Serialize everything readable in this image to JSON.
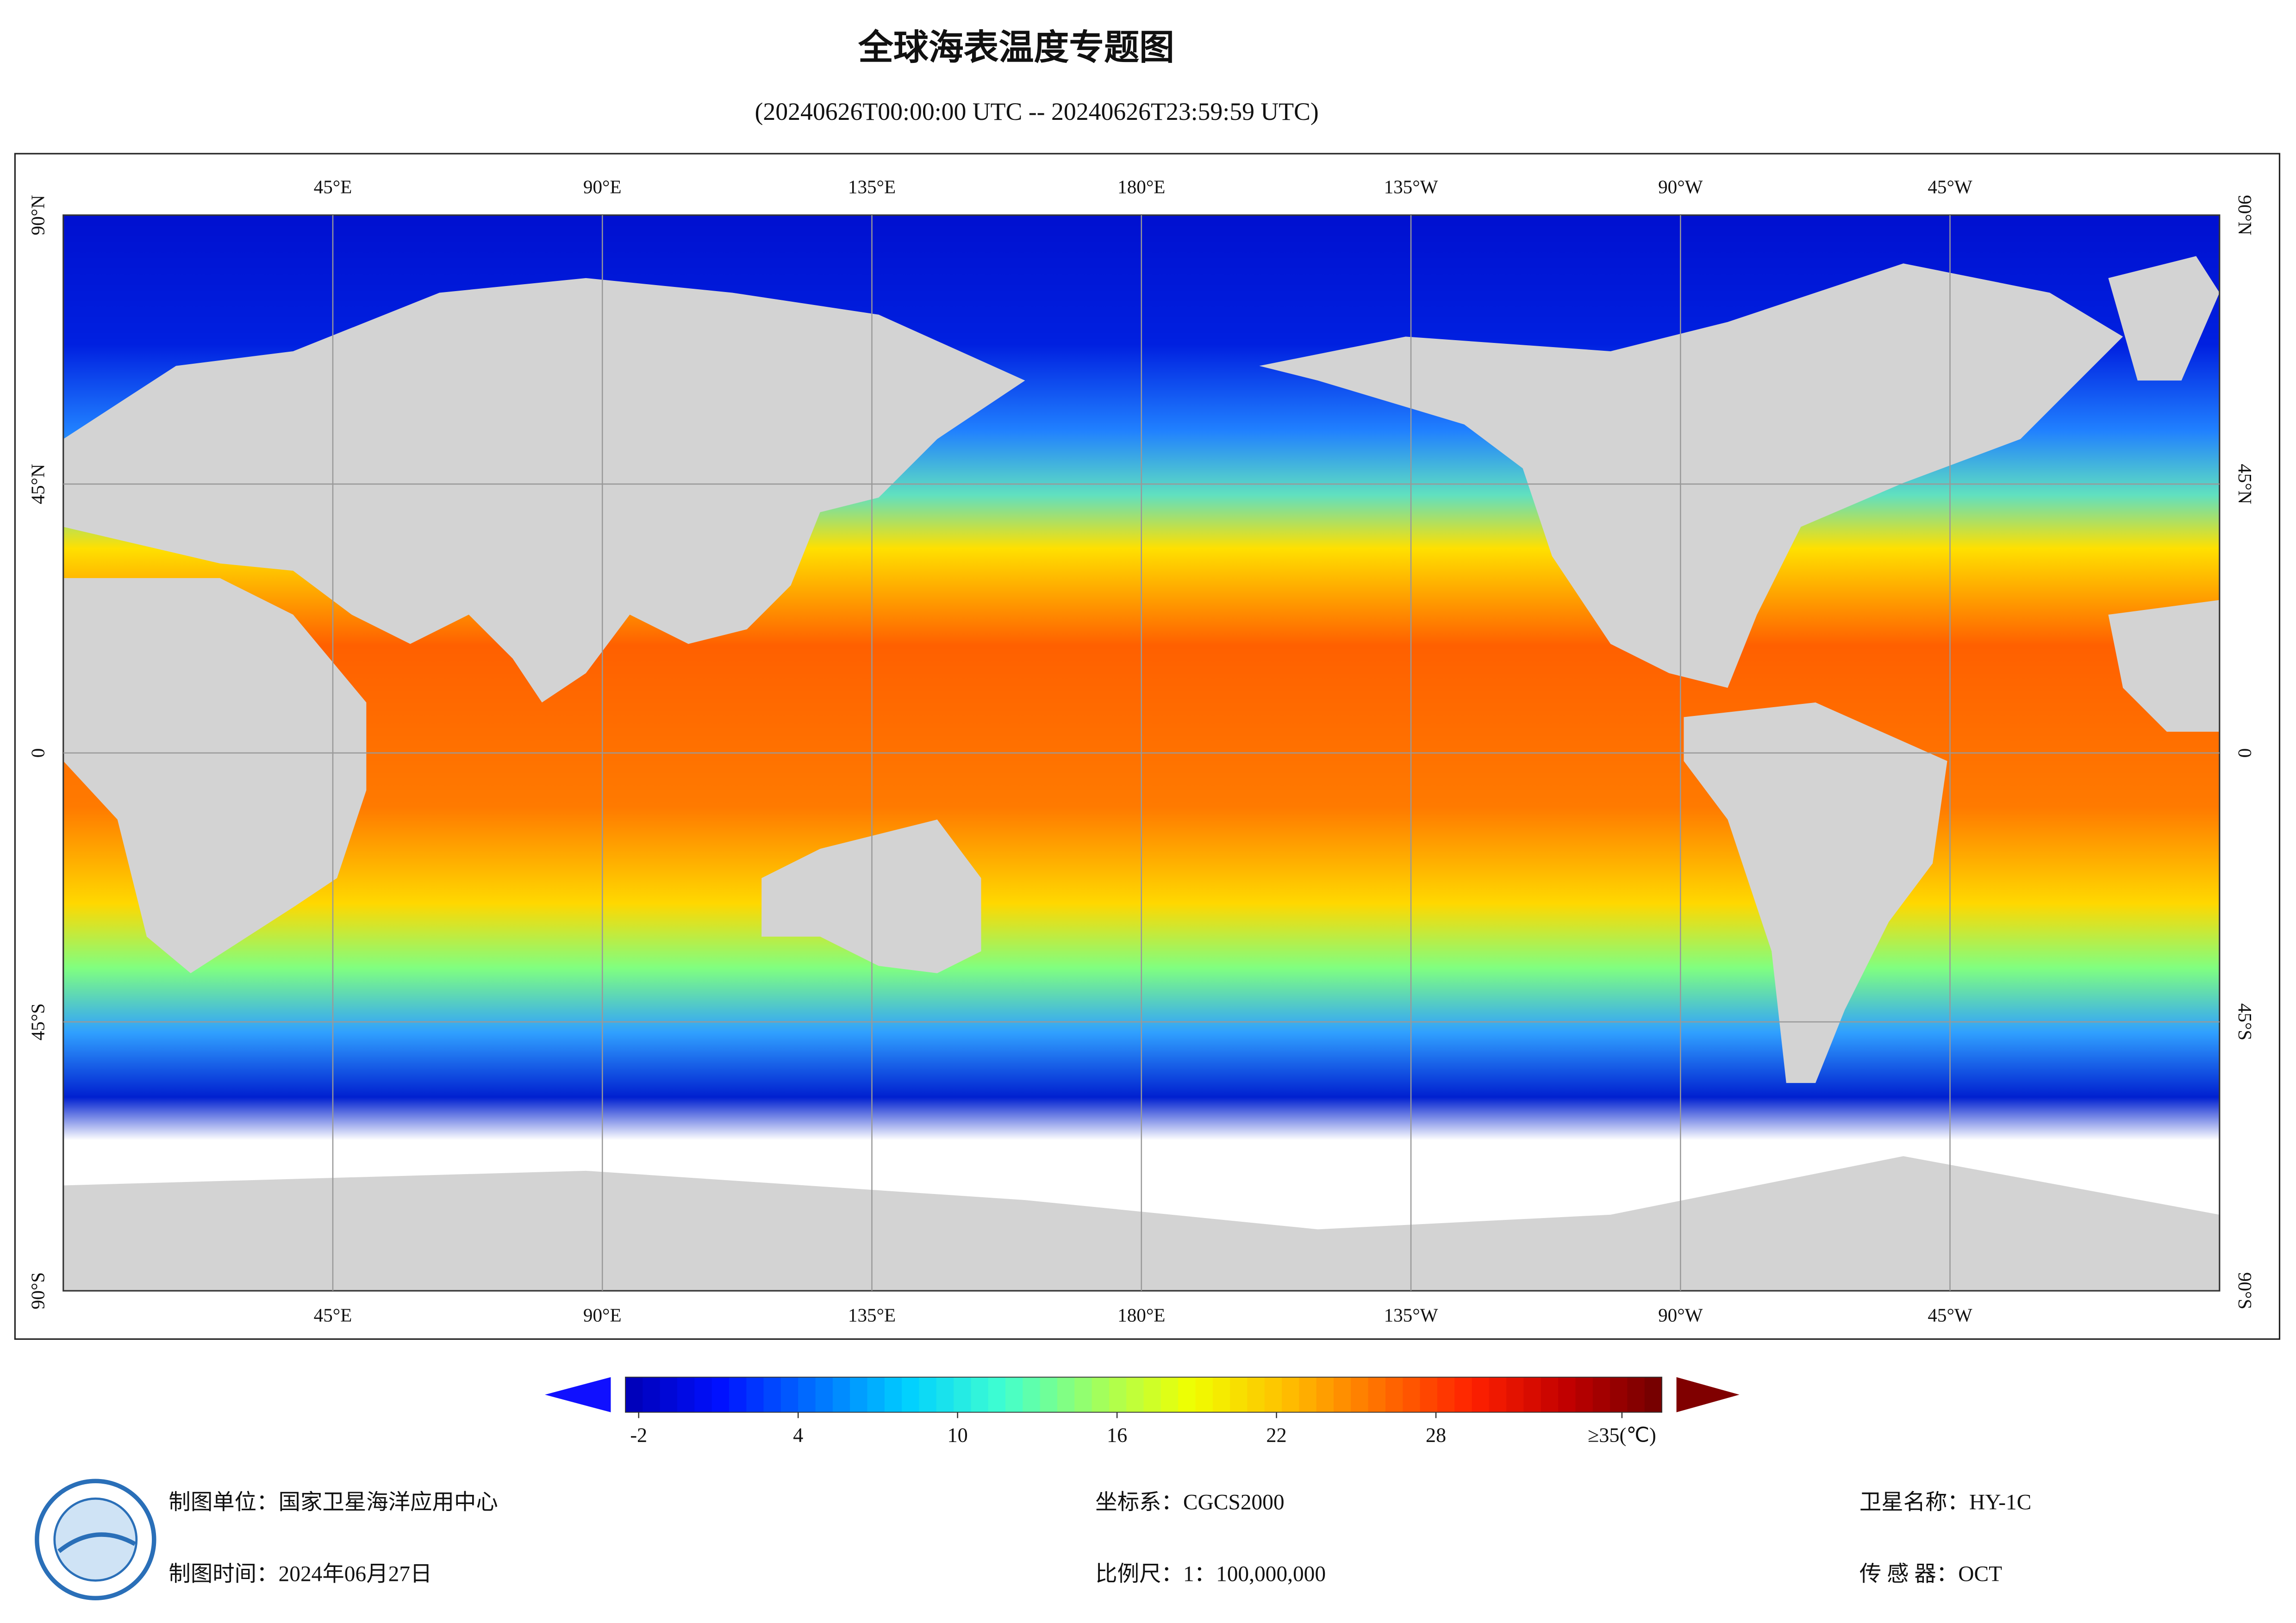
{
  "title": "全球海表温度专题图",
  "subtitle": "(20240626T00:00:00 UTC -- 20240626T23:59:59 UTC)",
  "map": {
    "xlim": [
      0,
      360
    ],
    "ylim": [
      -90,
      90
    ],
    "xticks": [
      {
        "value": 45,
        "label": "45°E"
      },
      {
        "value": 90,
        "label": "90°E"
      },
      {
        "value": 135,
        "label": "135°E"
      },
      {
        "value": 180,
        "label": "180°E"
      },
      {
        "value": -135,
        "label": "135°W"
      },
      {
        "value": -90,
        "label": "90°W"
      },
      {
        "value": -45,
        "label": "45°W"
      }
    ],
    "yticks": [
      {
        "value": 90,
        "label": "90°N"
      },
      {
        "value": 45,
        "label": "45°N"
      },
      0,
      {
        "value": -45,
        "label": "45°S"
      },
      {
        "value": -90,
        "label": "90°S"
      }
    ],
    "grid": true
  },
  "colorbar": {
    "clim": [
      -2.5,
      36.5
    ],
    "ticks": [
      -2,
      4,
      10,
      16,
      22,
      28,
      {
        "value": 35,
        "label": "≥35(℃)"
      }
    ],
    "colormap": [
      "#0000b4",
      "#0010ff",
      "#0070ff",
      "#00d0ff",
      "#40ffd0",
      "#a0ff60",
      "#f0ff00",
      "#ffc000",
      "#ff7000",
      "#ff2000",
      "#c00000",
      "#700000"
    ],
    "under_color": "#1010ff",
    "over_color": "#800000"
  },
  "footer": {
    "items": [
      "制图单位：国家卫星海洋应用中心",
      "制图时间：2024年06月27日",
      "坐标系：CGCS2000",
      "比例尺：1：100,000,000",
      "卫星名称：HY-1C",
      "传 感 器：OCT"
    ]
  }
}
